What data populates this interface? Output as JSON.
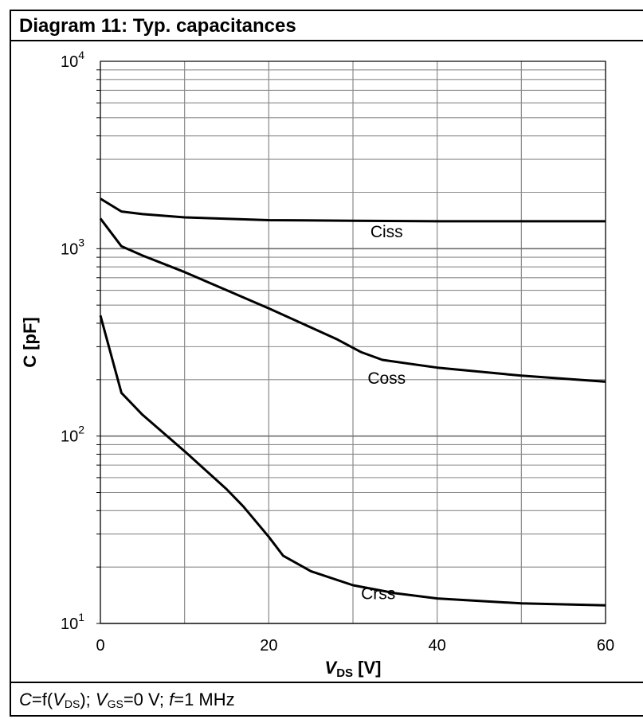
{
  "chart_data": {
    "type": "line",
    "title": "Diagram 11: Typ. capacitances",
    "xlabel_main": "V",
    "xlabel_sub": "DS",
    "xlabel_unit": " [V]",
    "ylabel": "C [pF]",
    "xlim": [
      0,
      60
    ],
    "ylim": [
      10,
      10000
    ],
    "yscale": "log",
    "grid": true,
    "x_ticks": [
      0,
      20,
      40,
      60
    ],
    "y_ticks": [
      {
        "base": "10",
        "exp": "1",
        "value": 10
      },
      {
        "base": "10",
        "exp": "2",
        "value": 100
      },
      {
        "base": "10",
        "exp": "3",
        "value": 1000
      },
      {
        "base": "10",
        "exp": "4",
        "value": 10000
      }
    ],
    "series": [
      {
        "name": "Ciss",
        "label_at": [
          34,
          1150
        ],
        "points": [
          [
            0,
            1850
          ],
          [
            2.5,
            1580
          ],
          [
            5,
            1530
          ],
          [
            10,
            1470
          ],
          [
            20,
            1420
          ],
          [
            30,
            1410
          ],
          [
            40,
            1400
          ],
          [
            50,
            1400
          ],
          [
            60,
            1400
          ]
        ]
      },
      {
        "name": "Coss",
        "label_at": [
          34,
          190
        ],
        "points": [
          [
            0,
            1450
          ],
          [
            2.5,
            1030
          ],
          [
            5,
            920
          ],
          [
            10,
            750
          ],
          [
            15,
            600
          ],
          [
            20,
            480
          ],
          [
            25,
            380
          ],
          [
            28,
            330
          ],
          [
            31,
            280
          ],
          [
            33.5,
            255
          ],
          [
            40,
            232
          ],
          [
            50,
            210
          ],
          [
            60,
            195
          ]
        ]
      },
      {
        "name": "Crss",
        "label_at": [
          33,
          13.5
        ],
        "points": [
          [
            0,
            440
          ],
          [
            2.5,
            170
          ],
          [
            5,
            130
          ],
          [
            10,
            83
          ],
          [
            15,
            52
          ],
          [
            17,
            42
          ],
          [
            20,
            29
          ],
          [
            21.7,
            23
          ],
          [
            25,
            19
          ],
          [
            30,
            16
          ],
          [
            35,
            14.5
          ],
          [
            40,
            13.6
          ],
          [
            50,
            12.8
          ],
          [
            60,
            12.5
          ]
        ]
      }
    ]
  },
  "footer": {
    "c": "C",
    "eq": "=f(",
    "v1": "V",
    "v1sub": "DS",
    "mid": "); ",
    "v2": "V",
    "v2sub": "GS",
    "mid2": "=0 V; ",
    "f": "f",
    "tail": "=1 MHz"
  }
}
